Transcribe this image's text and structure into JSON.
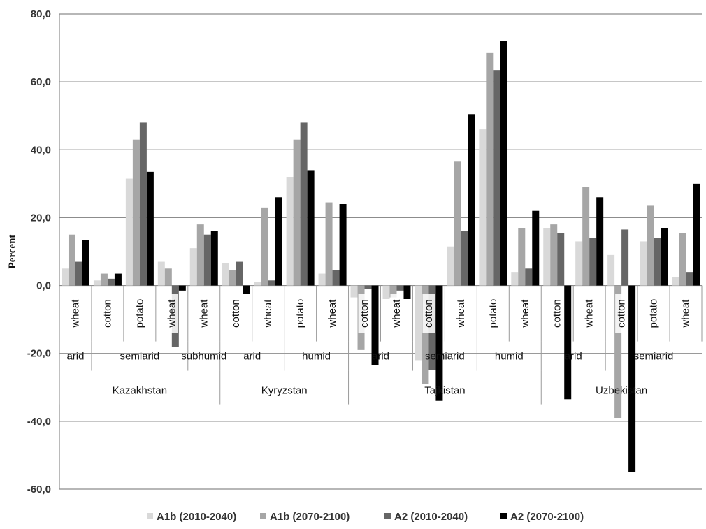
{
  "chart_data": {
    "type": "bar",
    "title": "",
    "ylabel": "Percent",
    "ylim": [
      -60,
      80
    ],
    "yticks": [
      "-60,0",
      "-40,0",
      "-20,0",
      "0,0",
      "20,0",
      "40,0",
      "60,0",
      "80,0"
    ],
    "grid": true,
    "legend_position": "bottom",
    "categories": [
      {
        "crop": "wheat",
        "climate": "arid",
        "country": "Kazakhstan"
      },
      {
        "crop": "cotton",
        "climate": "semiarid",
        "country": "Kazakhstan"
      },
      {
        "crop": "potato",
        "climate": "semiarid",
        "country": "Kazakhstan"
      },
      {
        "crop": "wheat",
        "climate": "semiarid",
        "country": "Kazakhstan"
      },
      {
        "crop": "wheat",
        "climate": "subhumid",
        "country": "Kazakhstan"
      },
      {
        "crop": "cotton",
        "climate": "arid",
        "country": "Kyryzstan"
      },
      {
        "crop": "wheat",
        "climate": "arid",
        "country": "Kyryzstan"
      },
      {
        "crop": "potato",
        "climate": "humid",
        "country": "Kyryzstan"
      },
      {
        "crop": "wheat",
        "climate": "humid",
        "country": "Kyryzstan"
      },
      {
        "crop": "cotton",
        "climate": "arid",
        "country": "Tajkistan"
      },
      {
        "crop": "wheat",
        "climate": "arid",
        "country": "Tajkistan"
      },
      {
        "crop": "cotton",
        "climate": "semiarid",
        "country": "Tajkistan"
      },
      {
        "crop": "wheat",
        "climate": "semiarid",
        "country": "Tajkistan"
      },
      {
        "crop": "potato",
        "climate": "humid",
        "country": "Tajkistan"
      },
      {
        "crop": "wheat",
        "climate": "humid",
        "country": "Tajkistan"
      },
      {
        "crop": "cotton",
        "climate": "arid",
        "country": "Uzbekistan"
      },
      {
        "crop": "wheat",
        "climate": "arid",
        "country": "Uzbekistan"
      },
      {
        "crop": "cotton",
        "climate": "semiarid",
        "country": "Uzbekistan"
      },
      {
        "crop": "potato",
        "climate": "semiarid",
        "country": "Uzbekistan"
      },
      {
        "crop": "wheat",
        "climate": "semiarid",
        "country": "Uzbekistan"
      }
    ],
    "climate_groups": [
      {
        "label": "arid",
        "start": 0,
        "end": 0
      },
      {
        "label": "semiarid",
        "start": 1,
        "end": 3
      },
      {
        "label": "subhumid",
        "start": 4,
        "end": 4
      },
      {
        "label": "arid",
        "start": 5,
        "end": 6
      },
      {
        "label": "humid",
        "start": 7,
        "end": 8
      },
      {
        "label": "arid",
        "start": 9,
        "end": 10
      },
      {
        "label": "semiarid",
        "start": 11,
        "end": 12
      },
      {
        "label": "humid",
        "start": 13,
        "end": 14
      },
      {
        "label": "arid",
        "start": 15,
        "end": 16
      },
      {
        "label": "semiarid",
        "start": 17,
        "end": 19
      }
    ],
    "country_groups": [
      {
        "label": "Kazakhstan",
        "start": 0,
        "end": 4
      },
      {
        "label": "Kyryzstan",
        "start": 5,
        "end": 8
      },
      {
        "label": "Tajkistan",
        "start": 9,
        "end": 14
      },
      {
        "label": "Uzbekistan",
        "start": 15,
        "end": 19
      }
    ],
    "series": [
      {
        "name": "A1b (2010-2040)",
        "color": "#d9d9d9",
        "values": [
          5.0,
          1.5,
          31.5,
          7.0,
          11.0,
          6.5,
          1.0,
          32.0,
          3.5,
          -3.5,
          -4.0,
          -22.0,
          11.5,
          46.0,
          4.0,
          17.0,
          13.0,
          9.0,
          13.0,
          2.5
        ]
      },
      {
        "name": "A1b (2070-2100)",
        "color": "#a6a6a6",
        "values": [
          15.0,
          3.5,
          43.0,
          5.0,
          18.0,
          4.5,
          23.0,
          43.0,
          24.5,
          -19.0,
          -3.5,
          -29.0,
          36.5,
          68.5,
          17.0,
          18.0,
          29.0,
          -39.0,
          23.5,
          15.5
        ]
      },
      {
        "name": "A2 (2010-2040)",
        "color": "#666666",
        "values": [
          7.0,
          2.0,
          48.0,
          -18.0,
          15.0,
          7.0,
          1.5,
          48.0,
          4.5,
          -1.0,
          -1.5,
          -25.0,
          16.0,
          63.5,
          5.0,
          15.5,
          14.0,
          16.5,
          14.0,
          4.0
        ]
      },
      {
        "name": "A2 (2070-2100)",
        "color": "#000000",
        "values": [
          13.5,
          3.5,
          33.5,
          -1.5,
          16.0,
          -2.5,
          26.0,
          34.0,
          24.0,
          -23.5,
          -4.0,
          -34.0,
          50.5,
          72.0,
          22.0,
          -33.5,
          26.0,
          -55.0,
          17.0,
          30.0
        ]
      }
    ]
  }
}
